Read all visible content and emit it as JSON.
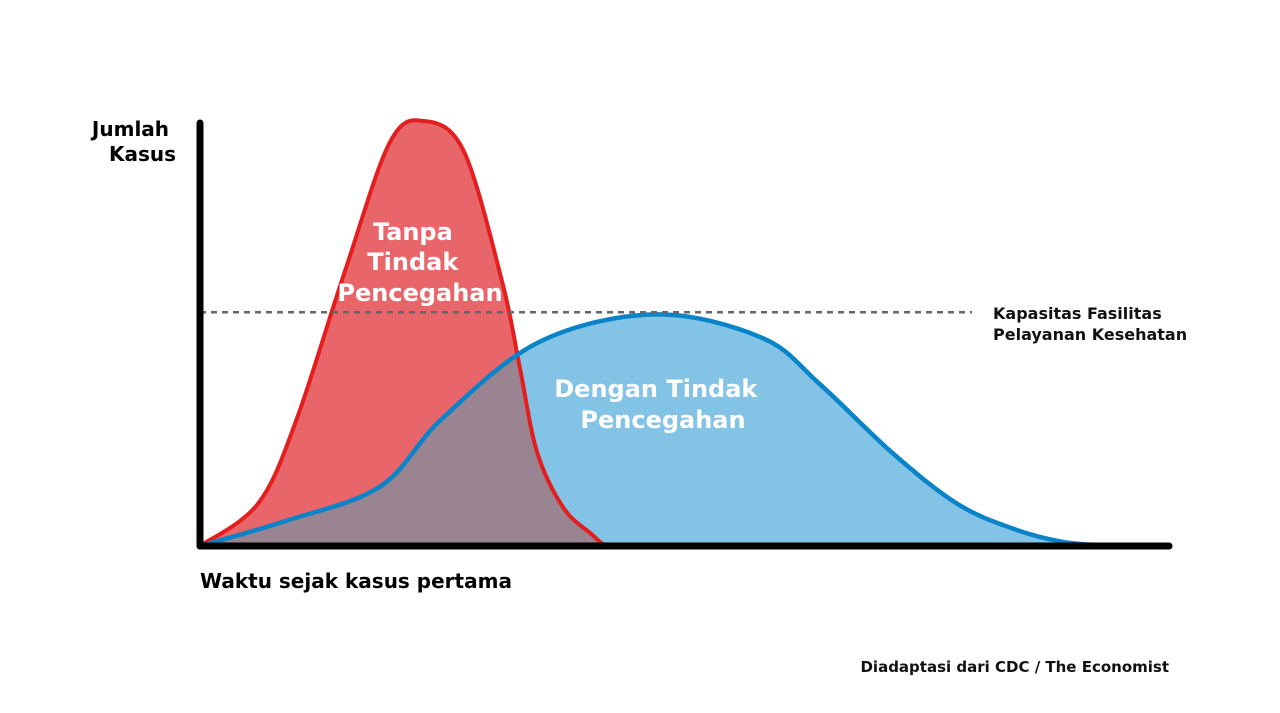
{
  "chart_data": {
    "type": "area",
    "ylabel": [
      "Jumlah",
      "Kasus"
    ],
    "xlabel": "Waktu sejak kasus pertama",
    "source": "Diadaptasi dari CDC / The Economist",
    "capacity_line": {
      "label": [
        "Kapasitas Fasilitas",
        "Pelayanan Kesehatan"
      ],
      "value": 0.55
    },
    "series": [
      {
        "name": [
          "Tanpa",
          "Tindak",
          "Pencegahan"
        ],
        "fill": "#E8666A",
        "stroke": "#E41E1E",
        "x": [
          0,
          0.06,
          0.1,
          0.15,
          0.196,
          0.231,
          0.272,
          0.312,
          0.33,
          0.348,
          0.375,
          0.403,
          0.42,
          0.44
        ],
        "y": [
          0,
          0.1,
          0.3,
          0.65,
          0.95,
          1.0,
          0.93,
          0.62,
          0.42,
          0.22,
          0.09,
          0.03,
          0.0,
          0.0
        ]
      },
      {
        "name": [
          "Dengan Tindak",
          "Pencegahan"
        ],
        "fill": "#82C3E6",
        "stroke": "#0A84C8",
        "x": [
          0,
          0.09,
          0.186,
          0.25,
          0.35,
          0.47,
          0.58,
          0.64,
          0.714,
          0.781,
          0.84,
          0.89,
          0.94
        ],
        "y": [
          0,
          0.06,
          0.14,
          0.3,
          0.48,
          0.545,
          0.49,
          0.38,
          0.22,
          0.1,
          0.04,
          0.01,
          0.0
        ]
      }
    ]
  }
}
